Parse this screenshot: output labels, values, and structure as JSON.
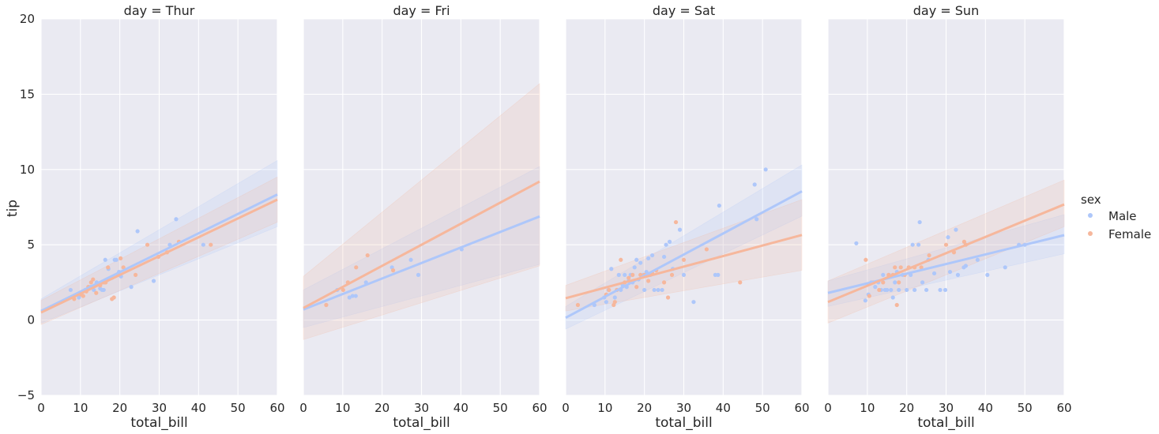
{
  "figure": {
    "ylabel": "tip",
    "ylim": [
      -5,
      20
    ],
    "yticks": [
      -5,
      0,
      5,
      10,
      15,
      20
    ],
    "legend": {
      "title": "sex",
      "placement": "right",
      "entries": [
        {
          "name": "Male",
          "color": "#aec7fa"
        },
        {
          "name": "Female",
          "color": "#f6b79c"
        }
      ]
    }
  },
  "colors": {
    "panel_background": "#eaeaf2",
    "grid": "#ffffff",
    "Male": "#aec7fa",
    "Female": "#f6b79c"
  },
  "chart_data": [
    {
      "type": "scatter",
      "title": "day = Thur",
      "xlabel": "total_bill",
      "ylabel": "tip",
      "xlim": [
        0,
        60
      ],
      "ylim": [
        -5,
        20
      ],
      "xticks": [
        0,
        10,
        20,
        30,
        40,
        50,
        60
      ],
      "grid": true,
      "series": [
        {
          "name": "Male",
          "points": [
            [
              7.5,
              2.0
            ],
            [
              9.6,
              1.5
            ],
            [
              10.3,
              1.8
            ],
            [
              11.2,
              2.0
            ],
            [
              12.5,
              2.2
            ],
            [
              13.4,
              2.0
            ],
            [
              14.1,
              2.5
            ],
            [
              15.0,
              2.1
            ],
            [
              15.5,
              2.0
            ],
            [
              15.9,
              2.0
            ],
            [
              16.3,
              4.0
            ],
            [
              17.1,
              3.4
            ],
            [
              18.0,
              2.8
            ],
            [
              18.7,
              4.0
            ],
            [
              19.1,
              4.0
            ],
            [
              19.8,
              3.2
            ],
            [
              20.3,
              2.9
            ],
            [
              22.9,
              2.2
            ],
            [
              24.5,
              5.9
            ],
            [
              28.6,
              2.6
            ],
            [
              32.7,
              5.0
            ],
            [
              34.3,
              6.7
            ],
            [
              41.2,
              5.0
            ]
          ],
          "fit": {
            "intercept": 0.6,
            "slope": 0.129
          },
          "ci_at_xmin": [
            -0.2,
            1.4
          ],
          "ci_at_xmax": [
            6.2,
            10.6
          ]
        },
        {
          "name": "Female",
          "points": [
            [
              8.4,
              1.4
            ],
            [
              10.1,
              1.7
            ],
            [
              10.7,
              1.6
            ],
            [
              11.5,
              1.9
            ],
            [
              12.0,
              2.2
            ],
            [
              12.7,
              2.5
            ],
            [
              13.2,
              2.7
            ],
            [
              14.0,
              1.8
            ],
            [
              15.0,
              2.3
            ],
            [
              16.0,
              2.5
            ],
            [
              16.4,
              2.5
            ],
            [
              17.0,
              3.5
            ],
            [
              18.0,
              1.4
            ],
            [
              18.5,
              1.5
            ],
            [
              19.5,
              3.0
            ],
            [
              20.2,
              4.1
            ],
            [
              20.9,
              3.5
            ],
            [
              24.0,
              3.0
            ],
            [
              27.0,
              5.0
            ],
            [
              29.8,
              4.2
            ],
            [
              32.0,
              4.5
            ],
            [
              35.0,
              5.2
            ],
            [
              43.1,
              5.0
            ]
          ],
          "fit": {
            "intercept": 0.5,
            "slope": 0.125
          },
          "ci_at_xmin": [
            -0.3,
            1.3
          ],
          "ci_at_xmax": [
            6.5,
            9.5
          ]
        }
      ]
    },
    {
      "type": "scatter",
      "title": "day = Fri",
      "xlabel": "total_bill",
      "ylabel": "",
      "xlim": [
        0,
        60
      ],
      "ylim": [
        -5,
        20
      ],
      "xticks": [
        0,
        10,
        20,
        30,
        40,
        50,
        60
      ],
      "grid": true,
      "series": [
        {
          "name": "Male",
          "points": [
            [
              5.8,
              1.0
            ],
            [
              8.6,
              2.0
            ],
            [
              11.7,
              1.5
            ],
            [
              12.5,
              1.6
            ],
            [
              13.3,
              1.6
            ],
            [
              15.9,
              2.5
            ],
            [
              22.5,
              3.5
            ],
            [
              27.3,
              4.0
            ],
            [
              29.2,
              3.0
            ],
            [
              40.2,
              4.7
            ]
          ],
          "fit": {
            "intercept": 0.7,
            "slope": 0.103
          },
          "ci_at_xmin": [
            -0.5,
            2.0
          ],
          "ci_at_xmax": [
            3.7,
            10.2
          ]
        },
        {
          "name": "Female",
          "points": [
            [
              5.8,
              1.0
            ],
            [
              10.1,
              2.0
            ],
            [
              11.3,
              2.5
            ],
            [
              13.4,
              3.5
            ],
            [
              16.3,
              4.3
            ],
            [
              22.8,
              3.3
            ]
          ],
          "fit": {
            "intercept": 0.8,
            "slope": 0.14
          },
          "ci_at_xmin": [
            -1.3,
            2.9
          ],
          "ci_at_xmax": [
            3.6,
            15.7
          ]
        }
      ]
    },
    {
      "type": "scatter",
      "title": "day = Sat",
      "xlabel": "total_bill",
      "ylabel": "",
      "xlim": [
        0,
        60
      ],
      "ylim": [
        -5,
        20
      ],
      "xticks": [
        0,
        10,
        20,
        30,
        40,
        50,
        60
      ],
      "grid": true,
      "series": [
        {
          "name": "Male",
          "points": [
            [
              7.3,
              1.0
            ],
            [
              9.8,
              1.5
            ],
            [
              10.3,
              1.2
            ],
            [
              10.9,
              2.0
            ],
            [
              11.6,
              3.4
            ],
            [
              12.5,
              1.5
            ],
            [
              13.0,
              2.0
            ],
            [
              13.5,
              3.0
            ],
            [
              14.0,
              2.0
            ],
            [
              14.5,
              2.3
            ],
            [
              15.0,
              3.0
            ],
            [
              15.5,
              2.2
            ],
            [
              16.0,
              2.6
            ],
            [
              16.5,
              3.0
            ],
            [
              17.0,
              2.5
            ],
            [
              17.5,
              3.5
            ],
            [
              18.0,
              4.0
            ],
            [
              18.5,
              2.7
            ],
            [
              19.0,
              3.8
            ],
            [
              19.7,
              3.0
            ],
            [
              20.0,
              2.0
            ],
            [
              20.5,
              3.2
            ],
            [
              21.0,
              4.1
            ],
            [
              21.5,
              3.0
            ],
            [
              22.0,
              4.3
            ],
            [
              22.5,
              2.0
            ],
            [
              23.5,
              2.0
            ],
            [
              24.5,
              2.0
            ],
            [
              25.0,
              4.2
            ],
            [
              25.5,
              5.0
            ],
            [
              26.4,
              5.2
            ],
            [
              27.2,
              3.4
            ],
            [
              29.0,
              6.0
            ],
            [
              30.0,
              3.0
            ],
            [
              32.5,
              1.2
            ],
            [
              38.0,
              3.0
            ],
            [
              38.7,
              3.0
            ],
            [
              39.0,
              7.6
            ],
            [
              48.0,
              9.0
            ],
            [
              48.5,
              6.7
            ],
            [
              50.8,
              10.0
            ]
          ],
          "fit": {
            "intercept": 0.15,
            "slope": 0.14
          },
          "ci_at_xmin": [
            -0.6,
            0.9
          ],
          "ci_at_xmax": [
            6.9,
            10.3
          ]
        },
        {
          "name": "Female",
          "points": [
            [
              3.1,
              1.0
            ],
            [
              10.3,
              1.7
            ],
            [
              11.0,
              2.0
            ],
            [
              12.2,
              1.0
            ],
            [
              12.5,
              1.2
            ],
            [
              13.0,
              2.0
            ],
            [
              14.0,
              4.0
            ],
            [
              15.0,
              2.5
            ],
            [
              16.0,
              2.8
            ],
            [
              17.0,
              3.0
            ],
            [
              18.0,
              2.2
            ],
            [
              19.0,
              3.0
            ],
            [
              20.0,
              3.0
            ],
            [
              21.0,
              2.6
            ],
            [
              22.0,
              3.1
            ],
            [
              23.0,
              3.3
            ],
            [
              25.0,
              2.5
            ],
            [
              26.0,
              1.5
            ],
            [
              27.0,
              3.0
            ],
            [
              28.0,
              6.5
            ],
            [
              30.0,
              4.0
            ],
            [
              35.8,
              4.7
            ],
            [
              44.3,
              2.5
            ]
          ],
          "fit": {
            "intercept": 1.45,
            "slope": 0.07
          },
          "ci_at_xmin": [
            0.6,
            2.3
          ],
          "ci_at_xmax": [
            3.3,
            8.0
          ]
        }
      ]
    },
    {
      "type": "scatter",
      "title": "day = Sun",
      "xlabel": "total_bill",
      "ylabel": "",
      "xlim": [
        0,
        60
      ],
      "ylim": [
        -5,
        20
      ],
      "xticks": [
        0,
        10,
        20,
        30,
        40,
        50,
        60
      ],
      "grid": true,
      "series": [
        {
          "name": "Male",
          "points": [
            [
              7.2,
              5.1
            ],
            [
              9.5,
              1.3
            ],
            [
              10.3,
              1.7
            ],
            [
              11.0,
              2.5
            ],
            [
              12.0,
              2.2
            ],
            [
              12.8,
              2.5
            ],
            [
              13.5,
              2.0
            ],
            [
              14.0,
              3.0
            ],
            [
              14.5,
              2.0
            ],
            [
              15.0,
              2.0
            ],
            [
              15.5,
              3.0
            ],
            [
              16.0,
              2.0
            ],
            [
              16.5,
              1.5
            ],
            [
              17.0,
              2.5
            ],
            [
              17.5,
              3.2
            ],
            [
              18.0,
              2.0
            ],
            [
              19.0,
              3.0
            ],
            [
              20.0,
              2.0
            ],
            [
              21.0,
              3.0
            ],
            [
              21.5,
              5.0
            ],
            [
              22.0,
              2.0
            ],
            [
              23.0,
              5.0
            ],
            [
              23.3,
              6.5
            ],
            [
              24.0,
              2.5
            ],
            [
              25.0,
              2.0
            ],
            [
              25.5,
              4.0
            ],
            [
              27.0,
              3.1
            ],
            [
              28.5,
              2.0
            ],
            [
              29.8,
              2.0
            ],
            [
              30.5,
              5.5
            ],
            [
              31.0,
              3.2
            ],
            [
              32.5,
              6.0
            ],
            [
              33.0,
              3.0
            ],
            [
              34.5,
              3.5
            ],
            [
              35.0,
              3.6
            ],
            [
              38.0,
              4.0
            ],
            [
              40.5,
              3.0
            ],
            [
              45.0,
              3.5
            ],
            [
              48.5,
              5.0
            ],
            [
              50.0,
              5.0
            ]
          ],
          "fit": {
            "intercept": 1.8,
            "slope": 0.064
          },
          "ci_at_xmin": [
            0.9,
            2.6
          ],
          "ci_at_xmax": [
            4.4,
            7.0
          ]
        },
        {
          "name": "Female",
          "points": [
            [
              9.6,
              4.0
            ],
            [
              10.5,
              1.6
            ],
            [
              11.5,
              2.5
            ],
            [
              13.0,
              2.0
            ],
            [
              14.0,
              2.5
            ],
            [
              15.4,
              3.0
            ],
            [
              16.5,
              3.0
            ],
            [
              17.0,
              3.5
            ],
            [
              17.5,
              1.0
            ],
            [
              18.0,
              2.5
            ],
            [
              18.5,
              3.5
            ],
            [
              19.5,
              3.0
            ],
            [
              20.5,
              3.5
            ],
            [
              22.0,
              3.5
            ],
            [
              23.7,
              3.5
            ],
            [
              25.7,
              4.3
            ],
            [
              30.0,
              5.0
            ],
            [
              32.0,
              4.5
            ],
            [
              34.6,
              5.2
            ],
            [
              35.0,
              5.0
            ]
          ],
          "fit": {
            "intercept": 1.2,
            "slope": 0.108
          },
          "ci_at_xmin": [
            -0.2,
            2.6
          ],
          "ci_at_xmax": [
            6.2,
            9.3
          ]
        }
      ]
    }
  ]
}
